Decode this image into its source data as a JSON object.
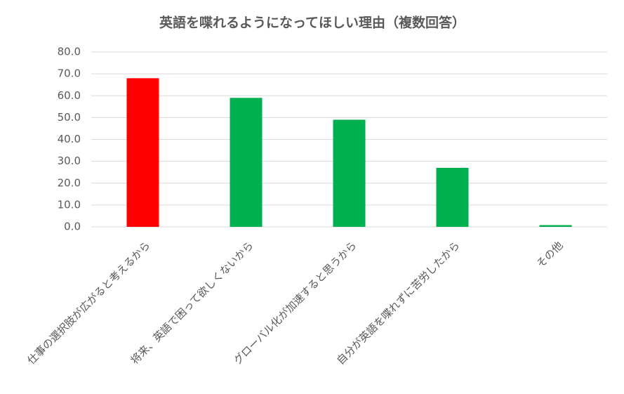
{
  "chart_data": {
    "type": "bar",
    "title": "英語を喋れるようになってほしい理由（複数回答）",
    "categories": [
      "仕事の選択肢が広がると考えるから",
      "将来、英語で困って欲しくないから",
      "グローバル化が加速すると思うから",
      "自分が英語を喋れずに苦労したから",
      "その他"
    ],
    "values": [
      68.0,
      59.0,
      49.0,
      27.0,
      0.8
    ],
    "colors": [
      "#ff0000",
      "#00b050",
      "#00b050",
      "#00b050",
      "#00b050"
    ],
    "ylim": [
      0,
      80
    ],
    "yticks": [
      {
        "value": 0,
        "label": "0.0"
      },
      {
        "value": 10,
        "label": "10.0"
      },
      {
        "value": 20,
        "label": "20.0"
      },
      {
        "value": 30,
        "label": "30.0"
      },
      {
        "value": 40,
        "label": "40.0"
      },
      {
        "value": 50,
        "label": "50.0"
      },
      {
        "value": 60,
        "label": "60.0"
      },
      {
        "value": 70,
        "label": "70.0"
      },
      {
        "value": 80,
        "label": "80.0"
      }
    ],
    "grid": true
  }
}
